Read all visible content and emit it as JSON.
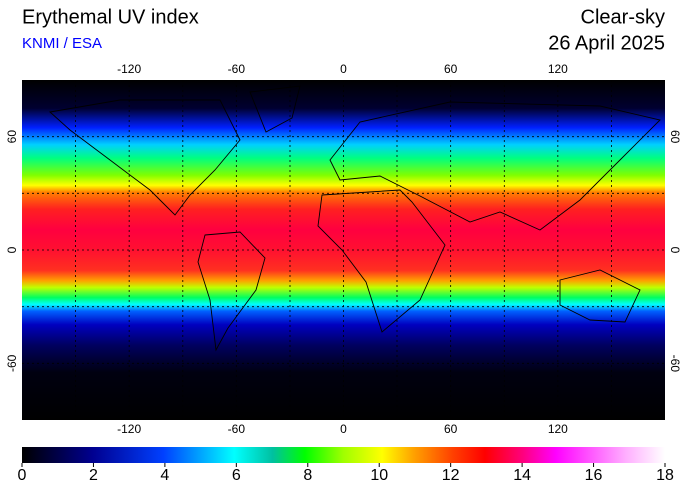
{
  "header": {
    "title": "Erythemal UV index",
    "source": "KNMI / ESA",
    "condition": "Clear-sky",
    "date": "26 April 2025"
  },
  "map": {
    "lon_ticks": [
      -120,
      -60,
      0,
      60,
      120
    ],
    "lat_ticks": [
      60,
      0,
      -60
    ]
  },
  "colorbar": {
    "ticks": [
      0,
      2,
      4,
      6,
      8,
      10,
      12,
      14,
      16,
      18
    ]
  }
}
